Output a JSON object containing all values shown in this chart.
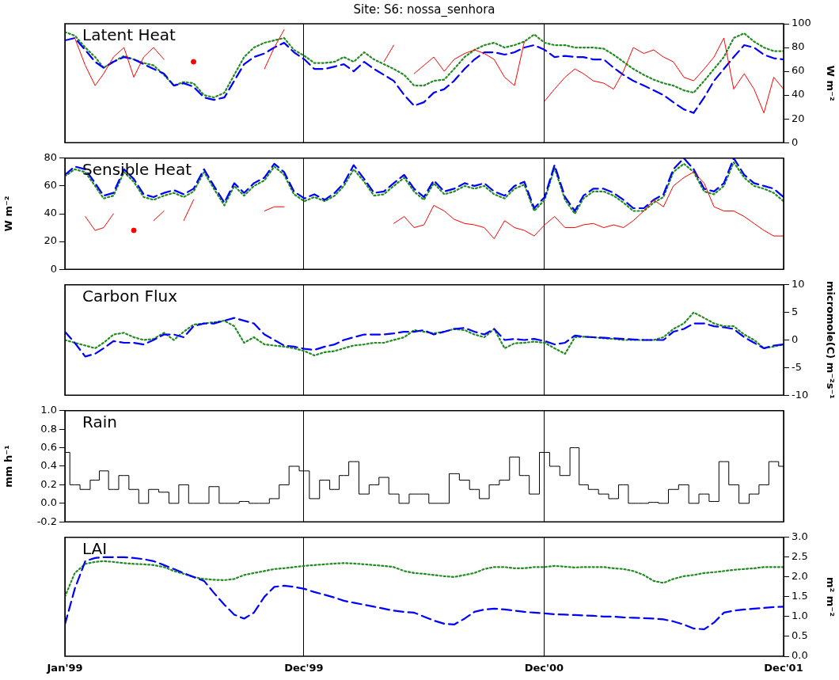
{
  "chart_data": [
    {
      "type": "line",
      "title": "Site: S6: nossa_senhora",
      "annotations": [
        "Latent Heat"
      ],
      "y2label": "W m⁻²",
      "grid": "x",
      "tick_labels": "y",
      "x": [
        "1999-01-01",
        "1999-01-16",
        "1999-02-01",
        "1999-02-16",
        "1999-03-01",
        "1999-03-16",
        "1999-04-01",
        "1999-04-16",
        "1999-05-01",
        "1999-05-16",
        "1999-06-01",
        "1999-06-16",
        "1999-07-01",
        "1999-07-16",
        "1999-08-01",
        "1999-08-16",
        "1999-09-01",
        "1999-09-16",
        "1999-10-01",
        "1999-10-16",
        "1999-11-01",
        "1999-11-16",
        "1999-12-01",
        "1999-12-16",
        "2000-01-01",
        "2000-01-16",
        "2000-02-01",
        "2000-02-16",
        "2000-03-01",
        "2000-03-16",
        "2000-04-01",
        "2000-04-16",
        "2000-05-01",
        "2000-05-16",
        "2000-06-01",
        "2000-06-16",
        "2000-07-01",
        "2000-07-16",
        "2000-08-01",
        "2000-08-16",
        "2000-09-01",
        "2000-09-16",
        "2000-10-01",
        "2000-10-16",
        "2000-11-01",
        "2000-11-16",
        "2000-12-01",
        "2000-12-16",
        "2001-01-01",
        "2001-01-16",
        "2001-02-01",
        "2001-02-16",
        "2001-03-01",
        "2001-03-16",
        "2001-04-01",
        "2001-04-16",
        "2001-05-01",
        "2001-05-16",
        "2001-06-01",
        "2001-06-16",
        "2001-07-01",
        "2001-07-16",
        "2001-08-01",
        "2001-08-16",
        "2001-09-01",
        "2001-09-16",
        "2001-10-01",
        "2001-10-16",
        "2001-11-01",
        "2001-11-16",
        "2001-12-01",
        "2001-12-16",
        "2001-12-31"
      ],
      "xlim": [
        "1999-01-01",
        "2001-12-31"
      ],
      "xticks": [
        {
          "value": "1999-01-01",
          "label": null
        },
        {
          "value": "1999-12-31",
          "label": null
        },
        {
          "value": "2000-12-31",
          "label": null
        },
        {
          "value": "2001-12-31",
          "label": null
        }
      ],
      "y2lim": [
        0,
        100
      ],
      "y2ticks": [
        0,
        20,
        40,
        60,
        80,
        100
      ],
      "series": [
        {
          "color": "#ff0000",
          "axis": "y2",
          "line_style": "solid",
          "values": [
            null,
            88,
            65,
            48,
            58,
            72,
            80,
            55,
            72,
            80,
            70,
            null,
            null,
            68,
            null,
            null,
            null,
            null,
            null,
            null,
            62,
            80,
            95,
            null,
            null,
            null,
            null,
            null,
            null,
            null,
            null,
            null,
            68,
            82,
            null,
            58,
            65,
            72,
            60,
            70,
            75,
            78,
            75,
            70,
            55,
            48,
            85,
            null,
            35,
            45,
            55,
            62,
            58,
            52,
            50,
            45,
            60,
            80,
            75,
            78,
            72,
            68,
            55,
            52,
            62,
            72,
            88,
            45,
            58,
            45,
            25,
            55,
            45
          ]
        },
        {
          "color": "#0000ff",
          "axis": "y2",
          "line_style": "dashed",
          "values": [
            86,
            88,
            78,
            68,
            63,
            68,
            72,
            70,
            66,
            62,
            58,
            48,
            50,
            47,
            38,
            36,
            38,
            52,
            66,
            72,
            75,
            80,
            84,
            76,
            70,
            62,
            62,
            64,
            66,
            60,
            68,
            62,
            57,
            52,
            40,
            31,
            34,
            42,
            45,
            52,
            62,
            70,
            76,
            76,
            74,
            76,
            80,
            82,
            78,
            72,
            73,
            72,
            72,
            70,
            70,
            63,
            57,
            52,
            48,
            44,
            40,
            34,
            28,
            25,
            38,
            52,
            62,
            72,
            82,
            80,
            74,
            71,
            70
          ]
        },
        {
          "color": "#228b22",
          "axis": "y2",
          "line_style": "dotted",
          "values": [
            93,
            90,
            80,
            72,
            63,
            68,
            73,
            70,
            67,
            65,
            57,
            48,
            51,
            50,
            40,
            38,
            42,
            57,
            72,
            80,
            84,
            86,
            88,
            78,
            73,
            67,
            67,
            68,
            72,
            68,
            76,
            70,
            66,
            62,
            57,
            48,
            48,
            52,
            53,
            62,
            72,
            78,
            82,
            84,
            80,
            82,
            85,
            91,
            84,
            82,
            82,
            80,
            80,
            80,
            79,
            74,
            68,
            62,
            57,
            53,
            50,
            48,
            44,
            42,
            52,
            62,
            72,
            88,
            92,
            85,
            80,
            77,
            77
          ]
        }
      ]
    },
    {
      "type": "line",
      "annotations": [
        "Sensible Heat"
      ],
      "ylabel": "W m⁻²",
      "grid": "x",
      "tick_labels": "y",
      "x": [
        "1999-01-01",
        "1999-01-16",
        "1999-02-01",
        "1999-02-16",
        "1999-03-01",
        "1999-03-16",
        "1999-04-01",
        "1999-04-16",
        "1999-05-01",
        "1999-05-16",
        "1999-06-01",
        "1999-06-16",
        "1999-07-01",
        "1999-07-16",
        "1999-08-01",
        "1999-08-16",
        "1999-09-01",
        "1999-09-16",
        "1999-10-01",
        "1999-10-16",
        "1999-11-01",
        "1999-11-16",
        "1999-12-01",
        "1999-12-16",
        "2000-01-01",
        "2000-01-16",
        "2000-02-01",
        "2000-02-16",
        "2000-03-01",
        "2000-03-16",
        "2000-04-01",
        "2000-04-16",
        "2000-05-01",
        "2000-05-16",
        "2000-06-01",
        "2000-06-16",
        "2000-07-01",
        "2000-07-16",
        "2000-08-01",
        "2000-08-16",
        "2000-09-01",
        "2000-09-16",
        "2000-10-01",
        "2000-10-16",
        "2000-11-01",
        "2000-11-16",
        "2000-12-01",
        "2000-12-16",
        "2001-01-01",
        "2001-01-16",
        "2001-02-01",
        "2001-02-16",
        "2001-03-01",
        "2001-03-16",
        "2001-04-01",
        "2001-04-16",
        "2001-05-01",
        "2001-05-16",
        "2001-06-01",
        "2001-06-16",
        "2001-07-01",
        "2001-07-16",
        "2001-08-01",
        "2001-08-16",
        "2001-09-01",
        "2001-09-16",
        "2001-10-01",
        "2001-10-16",
        "2001-11-01",
        "2001-11-16",
        "2001-12-01",
        "2001-12-16",
        "2001-12-31"
      ],
      "xlim": [
        "1999-01-01",
        "2001-12-31"
      ],
      "xticks": [
        {
          "value": "1999-01-01",
          "label": null
        },
        {
          "value": "1999-12-31",
          "label": null
        },
        {
          "value": "2000-12-31",
          "label": null
        },
        {
          "value": "2001-12-31",
          "label": null
        }
      ],
      "ylim": [
        0,
        80
      ],
      "yticks": [
        0,
        20,
        40,
        60,
        80
      ],
      "series": [
        {
          "color": "#ff0000",
          "line_style": "solid",
          "values": [
            null,
            null,
            38,
            28,
            30,
            40,
            null,
            28,
            null,
            35,
            42,
            null,
            35,
            50,
            null,
            null,
            null,
            null,
            null,
            null,
            42,
            45,
            45,
            null,
            null,
            null,
            null,
            null,
            null,
            null,
            null,
            null,
            null,
            33,
            38,
            30,
            32,
            46,
            42,
            36,
            33,
            32,
            30,
            22,
            35,
            30,
            28,
            24,
            32,
            38,
            30,
            30,
            32,
            33,
            30,
            32,
            30,
            35,
            42,
            50,
            45,
            60,
            66,
            70,
            62,
            45,
            42,
            42,
            38,
            33,
            28,
            24,
            24
          ]
        },
        {
          "color": "#0000ff",
          "line_style": "dashed",
          "values": [
            68,
            74,
            72,
            62,
            53,
            55,
            72,
            65,
            54,
            52,
            55,
            57,
            54,
            58,
            72,
            60,
            48,
            62,
            55,
            62,
            66,
            76,
            70,
            56,
            51,
            54,
            50,
            55,
            62,
            75,
            65,
            55,
            56,
            62,
            68,
            58,
            52,
            64,
            56,
            58,
            62,
            60,
            62,
            56,
            53,
            60,
            63,
            44,
            52,
            75,
            52,
            42,
            53,
            58,
            58,
            55,
            50,
            44,
            44,
            50,
            54,
            72,
            80,
            72,
            58,
            56,
            62,
            80,
            68,
            62,
            60,
            58,
            52
          ]
        },
        {
          "color": "#228b22",
          "line_style": "dotted",
          "values": [
            67,
            72,
            70,
            60,
            51,
            53,
            70,
            63,
            52,
            50,
            53,
            55,
            52,
            56,
            70,
            58,
            46,
            60,
            53,
            60,
            64,
            74,
            68,
            54,
            49,
            52,
            49,
            53,
            60,
            72,
            63,
            53,
            54,
            60,
            66,
            56,
            50,
            62,
            54,
            56,
            60,
            58,
            60,
            54,
            51,
            58,
            61,
            42,
            50,
            73,
            50,
            40,
            51,
            56,
            56,
            53,
            48,
            42,
            42,
            48,
            52,
            70,
            76,
            70,
            56,
            54,
            60,
            77,
            66,
            60,
            58,
            55,
            49
          ]
        }
      ]
    },
    {
      "type": "line",
      "annotations": [
        "Carbon Flux"
      ],
      "y2label": "micromole(C) m⁻²s⁻¹",
      "grid": "x",
      "tick_labels": "y",
      "x": [
        "1999-01-01",
        "1999-01-16",
        "1999-02-01",
        "1999-02-16",
        "1999-03-01",
        "1999-03-16",
        "1999-04-01",
        "1999-04-16",
        "1999-05-01",
        "1999-05-16",
        "1999-06-01",
        "1999-06-16",
        "1999-07-01",
        "1999-07-16",
        "1999-08-01",
        "1999-08-16",
        "1999-09-01",
        "1999-09-16",
        "1999-10-01",
        "1999-10-16",
        "1999-11-01",
        "1999-11-16",
        "1999-12-01",
        "1999-12-16",
        "2000-01-01",
        "2000-01-16",
        "2000-02-01",
        "2000-02-16",
        "2000-03-01",
        "2000-03-16",
        "2000-04-01",
        "2000-04-16",
        "2000-05-01",
        "2000-05-16",
        "2000-06-01",
        "2000-06-16",
        "2000-07-01",
        "2000-07-16",
        "2000-08-01",
        "2000-08-16",
        "2000-09-01",
        "2000-09-16",
        "2000-10-01",
        "2000-10-16",
        "2000-11-01",
        "2000-11-16",
        "2000-12-01",
        "2000-12-16",
        "2001-01-01",
        "2001-01-16",
        "2001-02-01",
        "2001-02-16",
        "2001-03-01",
        "2001-03-16",
        "2001-04-01",
        "2001-04-16",
        "2001-05-01",
        "2001-05-16",
        "2001-06-01",
        "2001-06-16",
        "2001-07-01",
        "2001-07-16",
        "2001-08-01",
        "2001-08-16",
        "2001-09-01",
        "2001-09-16",
        "2001-10-01",
        "2001-10-16",
        "2001-11-01",
        "2001-11-16",
        "2001-12-01",
        "2001-12-16",
        "2001-12-31"
      ],
      "xlim": [
        "1999-01-01",
        "2001-12-31"
      ],
      "xticks": [
        {
          "value": "1999-01-01",
          "label": null
        },
        {
          "value": "1999-12-31",
          "label": null
        },
        {
          "value": "2000-12-31",
          "label": null
        },
        {
          "value": "2001-12-31",
          "label": null
        }
      ],
      "y2lim": [
        -10,
        10
      ],
      "y2ticks": [
        -10,
        -5,
        0,
        5,
        10
      ],
      "series": [
        {
          "color": "#0000ff",
          "axis": "y2",
          "line_style": "dashed",
          "values": [
            1.5,
            -0.5,
            -3,
            -2.5,
            -1.5,
            -0.2,
            -0.5,
            -0.5,
            -0.8,
            0,
            1,
            1,
            0.5,
            2.5,
            3,
            3,
            3.5,
            4,
            3.5,
            3,
            1,
            0,
            -1,
            -1.2,
            -1.6,
            -1.8,
            -1.2,
            -0.8,
            0,
            0.5,
            1,
            1,
            1,
            1.2,
            1.5,
            1.5,
            1.8,
            1,
            1.5,
            2,
            2.2,
            1.5,
            1,
            2,
            0,
            0.2,
            0,
            0.2,
            -0.2,
            -0.8,
            -0.5,
            0.8,
            0.6,
            0.5,
            0.4,
            0.3,
            0.2,
            0.1,
            0,
            0,
            0,
            1.5,
            2,
            3,
            3,
            2.5,
            2.3,
            2,
            0.5,
            -0.5,
            -1.5,
            -1,
            -0.8
          ]
        },
        {
          "color": "#228b22",
          "axis": "y2",
          "line_style": "dotted",
          "values": [
            0,
            -0.5,
            -1,
            -1.5,
            -0.5,
            1,
            1.3,
            0.5,
            0,
            0.2,
            1.3,
            0,
            1.5,
            2.8,
            3,
            3.2,
            3.5,
            2.5,
            -0.5,
            0.5,
            -0.8,
            -1,
            -1.2,
            -1.5,
            -2,
            -2.8,
            -2.2,
            -2,
            -1.5,
            -1,
            -0.8,
            -0.5,
            -0.5,
            0,
            0.5,
            1.8,
            1.5,
            1.2,
            1.5,
            2,
            1.8,
            1,
            0.5,
            2,
            -1.5,
            -0.6,
            -0.5,
            -0.3,
            -0.5,
            -1.5,
            -2.5,
            0.5,
            0.6,
            0.5,
            0.3,
            0.2,
            0,
            0,
            0,
            0,
            0.5,
            2,
            3,
            5,
            4,
            3,
            2.5,
            2.5,
            1,
            0,
            -1.5,
            -1.2,
            -0.8
          ]
        }
      ]
    },
    {
      "type": "step",
      "annotations": [
        "Rain"
      ],
      "ylabel": "mm h⁻¹",
      "grid": "x",
      "tick_labels": "y",
      "x": [
        "1999-01-01",
        "1999-01-16",
        "1999-02-01",
        "1999-02-16",
        "1999-03-01",
        "1999-03-16",
        "1999-04-01",
        "1999-04-16",
        "1999-05-01",
        "1999-05-16",
        "1999-06-01",
        "1999-06-16",
        "1999-07-01",
        "1999-07-16",
        "1999-08-01",
        "1999-08-16",
        "1999-09-01",
        "1999-09-16",
        "1999-10-01",
        "1999-10-16",
        "1999-11-01",
        "1999-11-16",
        "1999-12-01",
        "1999-12-16",
        "2000-01-01",
        "2000-01-16",
        "2000-02-01",
        "2000-02-16",
        "2000-03-01",
        "2000-03-16",
        "2000-04-01",
        "2000-04-16",
        "2000-05-01",
        "2000-05-16",
        "2000-06-01",
        "2000-06-16",
        "2000-07-01",
        "2000-07-16",
        "2000-08-01",
        "2000-08-16",
        "2000-09-01",
        "2000-09-16",
        "2000-10-01",
        "2000-10-16",
        "2000-11-01",
        "2000-11-16",
        "2000-12-01",
        "2000-12-16",
        "2001-01-01",
        "2001-01-16",
        "2001-02-01",
        "2001-02-16",
        "2001-03-01",
        "2001-03-16",
        "2001-04-01",
        "2001-04-16",
        "2001-05-01",
        "2001-05-16",
        "2001-06-01",
        "2001-06-16",
        "2001-07-01",
        "2001-07-16",
        "2001-08-01",
        "2001-08-16",
        "2001-09-01",
        "2001-09-16",
        "2001-10-01",
        "2001-10-16",
        "2001-11-01",
        "2001-11-16",
        "2001-12-01",
        "2001-12-16",
        "2001-12-31"
      ],
      "xlim": [
        "1999-01-01",
        "2001-12-31"
      ],
      "xticks": [
        {
          "value": "1999-01-01",
          "label": null
        },
        {
          "value": "1999-12-31",
          "label": null
        },
        {
          "value": "2000-12-31",
          "label": null
        },
        {
          "value": "2001-12-31",
          "label": null
        }
      ],
      "ylim": [
        -0.2,
        1.0
      ],
      "yticks": [
        {
          "value": -0.2,
          "label": "-0.2"
        },
        {
          "value": 0,
          "label": "0.0"
        },
        {
          "value": 0.2,
          "label": "0.2"
        },
        {
          "value": 0.4,
          "label": "0.4"
        },
        {
          "value": 0.6,
          "label": "0.6"
        },
        {
          "value": 0.8,
          "label": "0.8"
        },
        {
          "value": 1,
          "label": "1.0"
        }
      ],
      "series": [
        {
          "color": "#000000",
          "line_style": "solid",
          "values": [
            0.55,
            0.2,
            0.15,
            0.25,
            0.35,
            0.15,
            0.3,
            0.15,
            0,
            0.15,
            0.12,
            0,
            0.2,
            0,
            0,
            0.18,
            0,
            0,
            0.02,
            0,
            0,
            0.05,
            0.2,
            0.4,
            0.35,
            0.05,
            0.25,
            0.15,
            0.3,
            0.45,
            0.1,
            0.2,
            0.28,
            0.1,
            0,
            0.1,
            0.1,
            0,
            0,
            0.32,
            0.25,
            0.15,
            0.05,
            0.2,
            0.25,
            0.5,
            0.3,
            0.1,
            0.55,
            0.4,
            0.3,
            0.6,
            0.2,
            0.15,
            0.1,
            0.05,
            0.2,
            0,
            0,
            0.01,
            0,
            0.15,
            0.2,
            0,
            0.1,
            0.02,
            0.45,
            0.2,
            0,
            0.1,
            0.2,
            0.45,
            0.4
          ]
        }
      ]
    },
    {
      "type": "line",
      "annotations": [
        "LAI"
      ],
      "y2label": "m² m⁻²",
      "grid": "x",
      "x": [
        "1999-01-01",
        "1999-01-16",
        "1999-02-01",
        "1999-02-16",
        "1999-03-01",
        "1999-03-16",
        "1999-04-01",
        "1999-04-16",
        "1999-05-01",
        "1999-05-16",
        "1999-06-01",
        "1999-06-16",
        "1999-07-01",
        "1999-07-16",
        "1999-08-01",
        "1999-08-16",
        "1999-09-01",
        "1999-09-16",
        "1999-10-01",
        "1999-10-16",
        "1999-11-01",
        "1999-11-16",
        "1999-12-01",
        "1999-12-16",
        "2000-01-01",
        "2000-01-16",
        "2000-02-01",
        "2000-02-16",
        "2000-03-01",
        "2000-03-16",
        "2000-04-01",
        "2000-04-16",
        "2000-05-01",
        "2000-05-16",
        "2000-06-01",
        "2000-06-16",
        "2000-07-01",
        "2000-07-16",
        "2000-08-01",
        "2000-08-16",
        "2000-09-01",
        "2000-09-16",
        "2000-10-01",
        "2000-10-16",
        "2000-11-01",
        "2000-11-16",
        "2000-12-01",
        "2000-12-16",
        "2001-01-01",
        "2001-01-16",
        "2001-02-01",
        "2001-02-16",
        "2001-03-01",
        "2001-03-16",
        "2001-04-01",
        "2001-04-16",
        "2001-05-01",
        "2001-05-16",
        "2001-06-01",
        "2001-06-16",
        "2001-07-01",
        "2001-07-16",
        "2001-08-01",
        "2001-08-16",
        "2001-09-01",
        "2001-09-16",
        "2001-10-01",
        "2001-10-16",
        "2001-11-01",
        "2001-11-16",
        "2001-12-01",
        "2001-12-16",
        "2001-12-31"
      ],
      "xlim": [
        "1999-01-01",
        "2001-12-31"
      ],
      "xticks": [
        {
          "value": "1999-01-01",
          "label": "Jan'99"
        },
        {
          "value": "1999-12-31",
          "label": "Dec'99"
        },
        {
          "value": "2000-12-31",
          "label": "Dec'00"
        },
        {
          "value": "2001-12-31",
          "label": "Dec'01"
        }
      ],
      "y2lim": [
        0,
        3
      ],
      "y2ticks": [
        {
          "value": 0,
          "label": "0.0"
        },
        {
          "value": 0.5,
          "label": "0.5"
        },
        {
          "value": 1,
          "label": "1.0"
        },
        {
          "value": 1.5,
          "label": "1.5"
        },
        {
          "value": 2,
          "label": "2.0"
        },
        {
          "value": 2.5,
          "label": "2.5"
        },
        {
          "value": 3,
          "label": "3.0"
        }
      ],
      "series": [
        {
          "color": "#0000ff",
          "axis": "y2",
          "line_style": "dashed",
          "values": [
            0.8,
            1.7,
            2.4,
            2.48,
            2.5,
            2.5,
            2.5,
            2.48,
            2.45,
            2.4,
            2.3,
            2.2,
            2.1,
            2.0,
            1.9,
            1.6,
            1.3,
            1.05,
            0.95,
            1.1,
            1.5,
            1.75,
            1.78,
            1.75,
            1.7,
            1.62,
            1.55,
            1.48,
            1.4,
            1.35,
            1.3,
            1.25,
            1.2,
            1.15,
            1.12,
            1.1,
            1.0,
            0.9,
            0.82,
            0.8,
            0.95,
            1.12,
            1.18,
            1.2,
            1.18,
            1.15,
            1.12,
            1.1,
            1.08,
            1.06,
            1.05,
            1.04,
            1.03,
            1.02,
            1.0,
            1.0,
            0.98,
            0.97,
            0.96,
            0.95,
            0.93,
            0.88,
            0.8,
            0.7,
            0.68,
            0.85,
            1.1,
            1.15,
            1.18,
            1.2,
            1.22,
            1.24,
            1.25
          ]
        },
        {
          "color": "#228b22",
          "axis": "y2",
          "line_style": "dotted",
          "values": [
            1.5,
            2.1,
            2.33,
            2.38,
            2.4,
            2.38,
            2.35,
            2.33,
            2.32,
            2.3,
            2.25,
            2.15,
            2.08,
            2.0,
            1.95,
            1.93,
            1.92,
            1.95,
            2.05,
            2.1,
            2.15,
            2.2,
            2.22,
            2.25,
            2.28,
            2.3,
            2.32,
            2.34,
            2.35,
            2.34,
            2.32,
            2.3,
            2.28,
            2.25,
            2.15,
            2.1,
            2.08,
            2.05,
            2.02,
            2.0,
            2.05,
            2.1,
            2.2,
            2.25,
            2.25,
            2.22,
            2.22,
            2.25,
            2.25,
            2.28,
            2.26,
            2.24,
            2.25,
            2.25,
            2.25,
            2.22,
            2.2,
            2.15,
            2.05,
            1.9,
            1.85,
            1.95,
            2.02,
            2.05,
            2.1,
            2.12,
            2.15,
            2.18,
            2.2,
            2.22,
            2.25,
            2.25,
            2.25
          ]
        }
      ]
    }
  ]
}
